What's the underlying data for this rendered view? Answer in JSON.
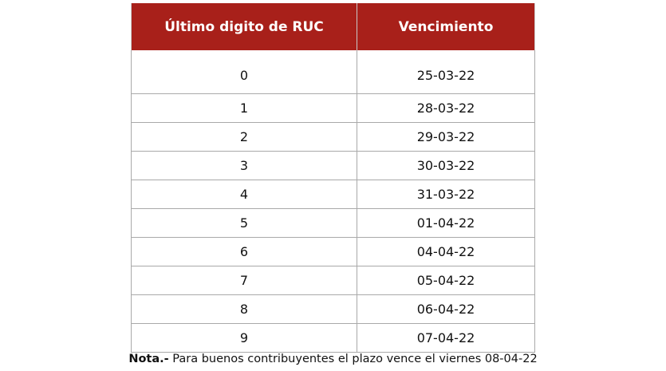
{
  "table": {
    "header_color": "#a8201a",
    "columns": [
      "Último digito de RUC",
      "Vencimiento"
    ],
    "rows": [
      {
        "digit": "0",
        "date": "25-03-22"
      },
      {
        "digit": "1",
        "date": "28-03-22"
      },
      {
        "digit": "2",
        "date": "29-03-22"
      },
      {
        "digit": "3",
        "date": "30-03-22"
      },
      {
        "digit": "4",
        "date": "31-03-22"
      },
      {
        "digit": "5",
        "date": "01-04-22"
      },
      {
        "digit": "6",
        "date": "04-04-22"
      },
      {
        "digit": "7",
        "date": "05-04-22"
      },
      {
        "digit": "8",
        "date": "06-04-22"
      },
      {
        "digit": "9",
        "date": "07-04-22"
      }
    ]
  },
  "note": {
    "label": "Nota.-",
    "text": "Para buenos contribuyentes el plazo vence el viernes 08-04-22"
  }
}
